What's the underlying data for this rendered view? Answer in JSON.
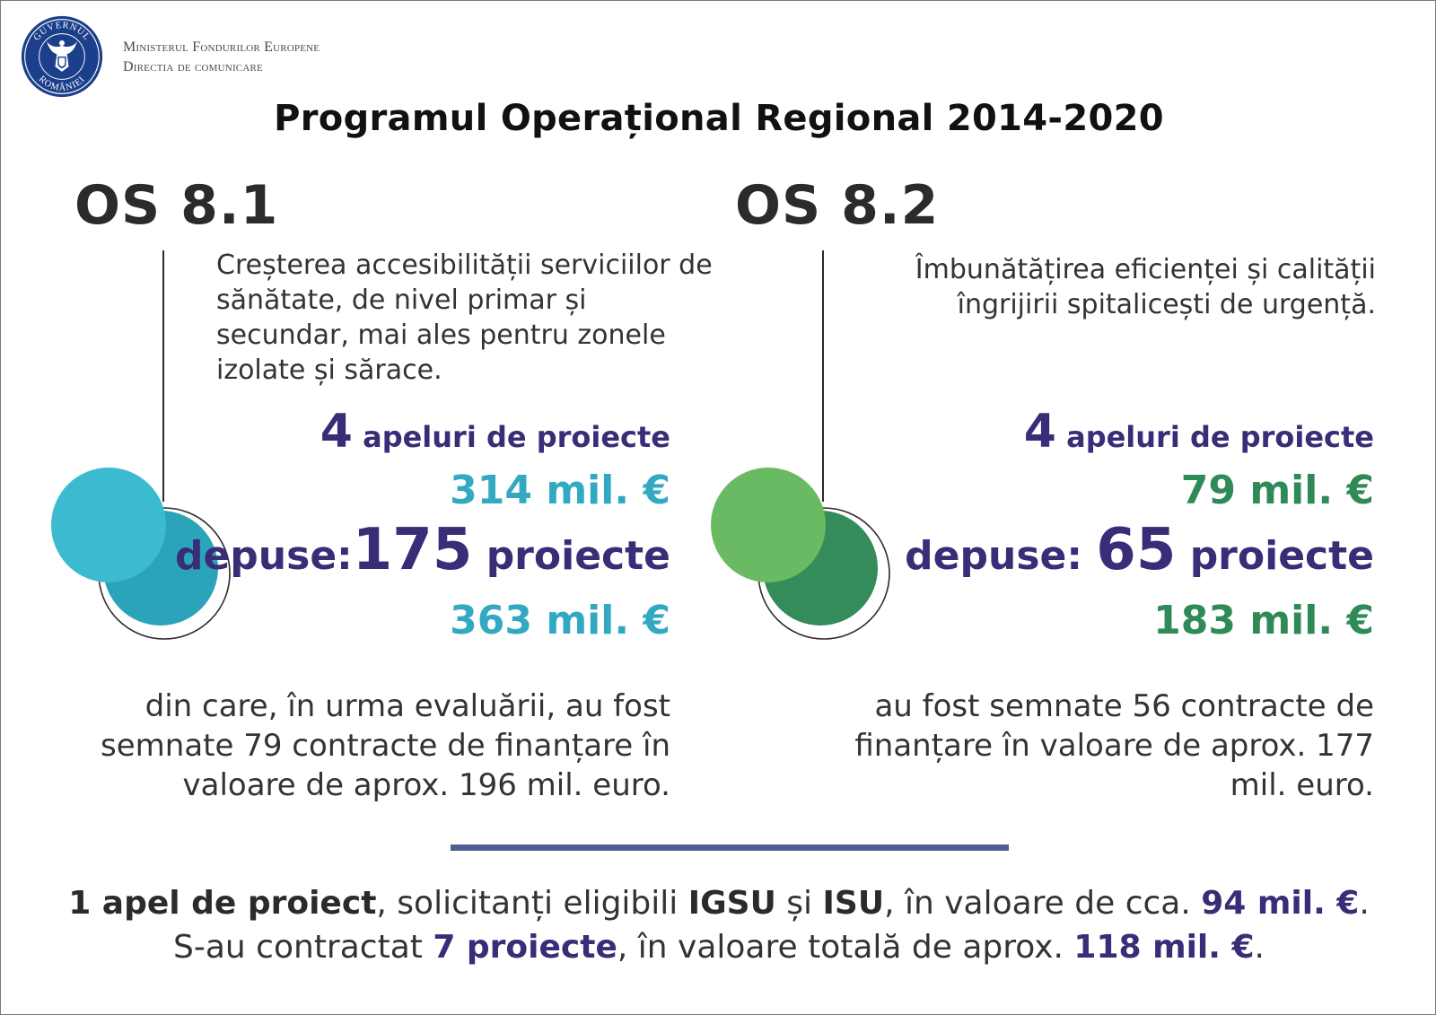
{
  "header": {
    "seal_text_top": "GUVERNUL",
    "seal_text_bottom": "ROMÂNIEI",
    "ministry_line1": "Ministerul Fondurilor Europene",
    "ministry_line2": "Directia de comunicare",
    "title": "Programul Operațional Regional 2014-2020"
  },
  "sections": [
    {
      "heading": "OS 8.1",
      "description": "Creșterea accesibilității serviciilor de sănătate, de nivel primar și secundar, mai ales pentru zonele izolate și sărace.",
      "calls_number": "4",
      "calls_label": "apeluri de proiecte",
      "allocation": "314 mil. €",
      "submitted_label": "depuse:",
      "submitted_number": "175",
      "submitted_unit": "proiecte",
      "submitted_value": "363 mil. €",
      "note": "din care, în urma evaluării, au fost semnate 79 contracte de finanțare în valoare de aprox. 196 mil. euro.",
      "circle_light": "#3bbad0",
      "circle_dark": "#2ba3b9",
      "accent": "#33a9c1"
    },
    {
      "heading": "OS 8.2",
      "description": "Îmbunătățirea  eficienței și calității îngrijirii spitalicești de urgență.",
      "calls_number": "4",
      "calls_label": "apeluri de proiecte",
      "allocation": "79 mil. €",
      "submitted_label": "depuse:",
      "submitted_number": "65",
      "submitted_unit": "proiecte",
      "submitted_value": "183 mil. €",
      "note": "au fost semnate 56 contracte de finanțare în valoare de aprox. 177 mil. euro.",
      "circle_light": "#6ab963",
      "circle_dark": "#348c5a",
      "accent": "#2e8a56"
    }
  ],
  "footer": {
    "line1_a": "1 apel de proiect",
    "line1_b": ", solicitanți eligibili ",
    "line1_c": "IGSU",
    "line1_d": " și ",
    "line1_e": "ISU",
    "line1_f": ", în valoare de cca. ",
    "line1_g": "94 mil. €",
    "line1_h": ".",
    "line2_a": "S-au contractat ",
    "line2_b": "7 proiecte",
    "line2_c": ", în valoare totală de aprox. ",
    "line2_d": "118 mil. €",
    "line2_e": "."
  },
  "colors": {
    "purple": "#3a2d78",
    "divider": "#4f5e93",
    "seal": "#1c3f8c"
  }
}
